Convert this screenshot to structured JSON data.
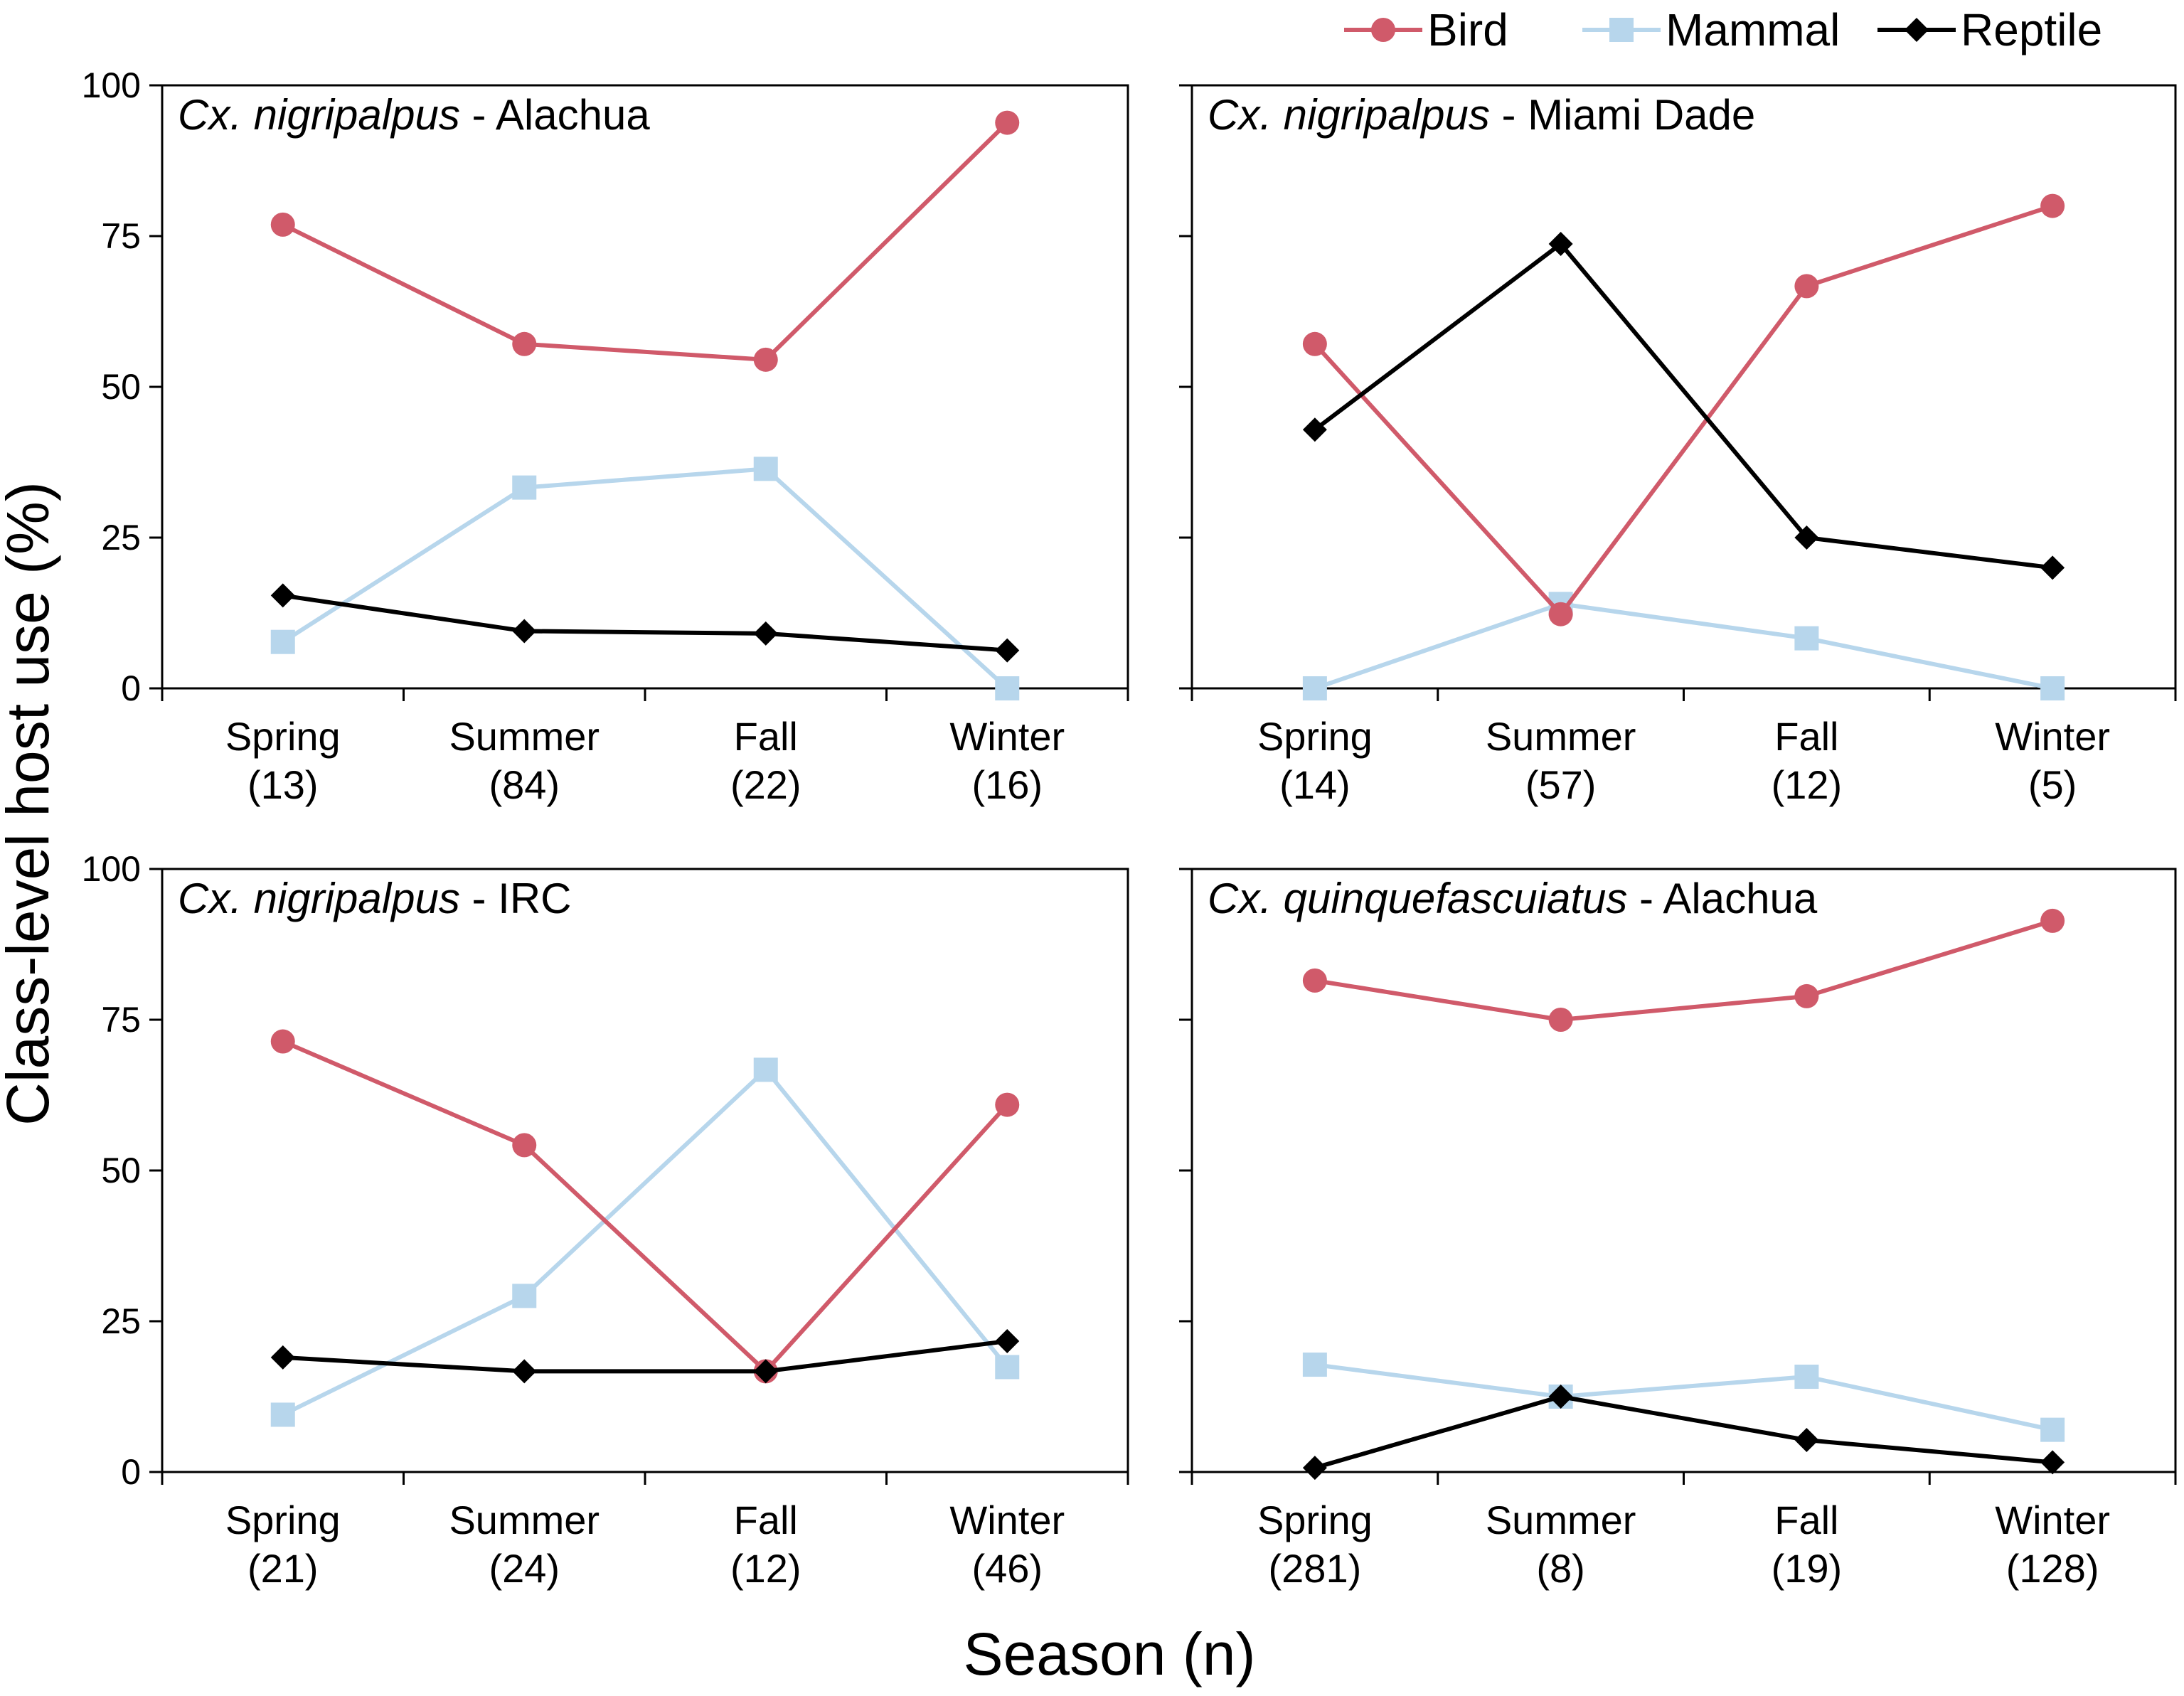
{
  "legend": [
    {
      "label": "Bird",
      "color": "#d05a6a",
      "marker": "circle"
    },
    {
      "label": "Mammal",
      "color": "#b7d6ec",
      "marker": "square"
    },
    {
      "label": "Reptile",
      "color": "#000000",
      "marker": "diamond"
    }
  ],
  "ylabel": "Class-level host use (%)",
  "xlabel": "Season (n)",
  "chart_data": [
    {
      "type": "line",
      "title_italic": "Cx. nigripalpus",
      "title_rest": " - Alachua",
      "categories": [
        "Spring",
        "Summer",
        "Fall",
        "Winter"
      ],
      "counts": [
        "(13)",
        "(84)",
        "(22)",
        "(16)"
      ],
      "ylim": [
        0,
        100
      ],
      "yticks": [
        "0",
        "25",
        "50",
        "75",
        "100"
      ],
      "series": [
        {
          "name": "Bird",
          "values": [
            76.9,
            57.1,
            54.5,
            93.8
          ]
        },
        {
          "name": "Mammal",
          "values": [
            7.7,
            33.3,
            36.4,
            0
          ]
        },
        {
          "name": "Reptile",
          "values": [
            15.4,
            9.5,
            9.1,
            6.3
          ]
        }
      ]
    },
    {
      "type": "line",
      "title_italic": "Cx. nigripalpus",
      "title_rest": " - Miami Dade",
      "categories": [
        "Spring",
        "Summer",
        "Fall",
        "Winter"
      ],
      "counts": [
        "(14)",
        "(57)",
        "(12)",
        "(5)"
      ],
      "ylim": [
        0,
        100
      ],
      "yticks": [
        "",
        "",
        "",
        "",
        ""
      ],
      "series": [
        {
          "name": "Bird",
          "values": [
            57.1,
            12.3,
            66.7,
            80
          ]
        },
        {
          "name": "Mammal",
          "values": [
            0,
            14.0,
            8.3,
            0
          ]
        },
        {
          "name": "Reptile",
          "values": [
            42.9,
            73.7,
            25,
            20
          ]
        }
      ]
    },
    {
      "type": "line",
      "title_italic": "Cx. nigripalpus",
      "title_rest": " - IRC",
      "categories": [
        "Spring",
        "Summer",
        "Fall",
        "Winter"
      ],
      "counts": [
        "(21)",
        "(24)",
        "(12)",
        "(46)"
      ],
      "ylim": [
        0,
        100
      ],
      "yticks": [
        "0",
        "25",
        "50",
        "75",
        "100"
      ],
      "series": [
        {
          "name": "Bird",
          "values": [
            71.4,
            54.2,
            16.7,
            60.9
          ]
        },
        {
          "name": "Mammal",
          "values": [
            9.5,
            29.2,
            66.7,
            17.4
          ]
        },
        {
          "name": "Reptile",
          "values": [
            19.0,
            16.7,
            16.7,
            21.7
          ]
        }
      ]
    },
    {
      "type": "line",
      "title_italic": "Cx. quinquefascuiatus",
      "title_rest": " - Alachua",
      "categories": [
        "Spring",
        "Summer",
        "Fall",
        "Winter"
      ],
      "counts": [
        "(281)",
        "(8)",
        "(19)",
        "(128)"
      ],
      "ylim": [
        0,
        100
      ],
      "yticks": [
        "",
        "",
        "",
        "",
        ""
      ],
      "series": [
        {
          "name": "Bird",
          "values": [
            81.5,
            75,
            78.9,
            91.4
          ]
        },
        {
          "name": "Mammal",
          "values": [
            17.8,
            12.5,
            15.8,
            7.0
          ]
        },
        {
          "name": "Reptile",
          "values": [
            0.7,
            12.5,
            5.3,
            1.6
          ]
        }
      ]
    }
  ]
}
